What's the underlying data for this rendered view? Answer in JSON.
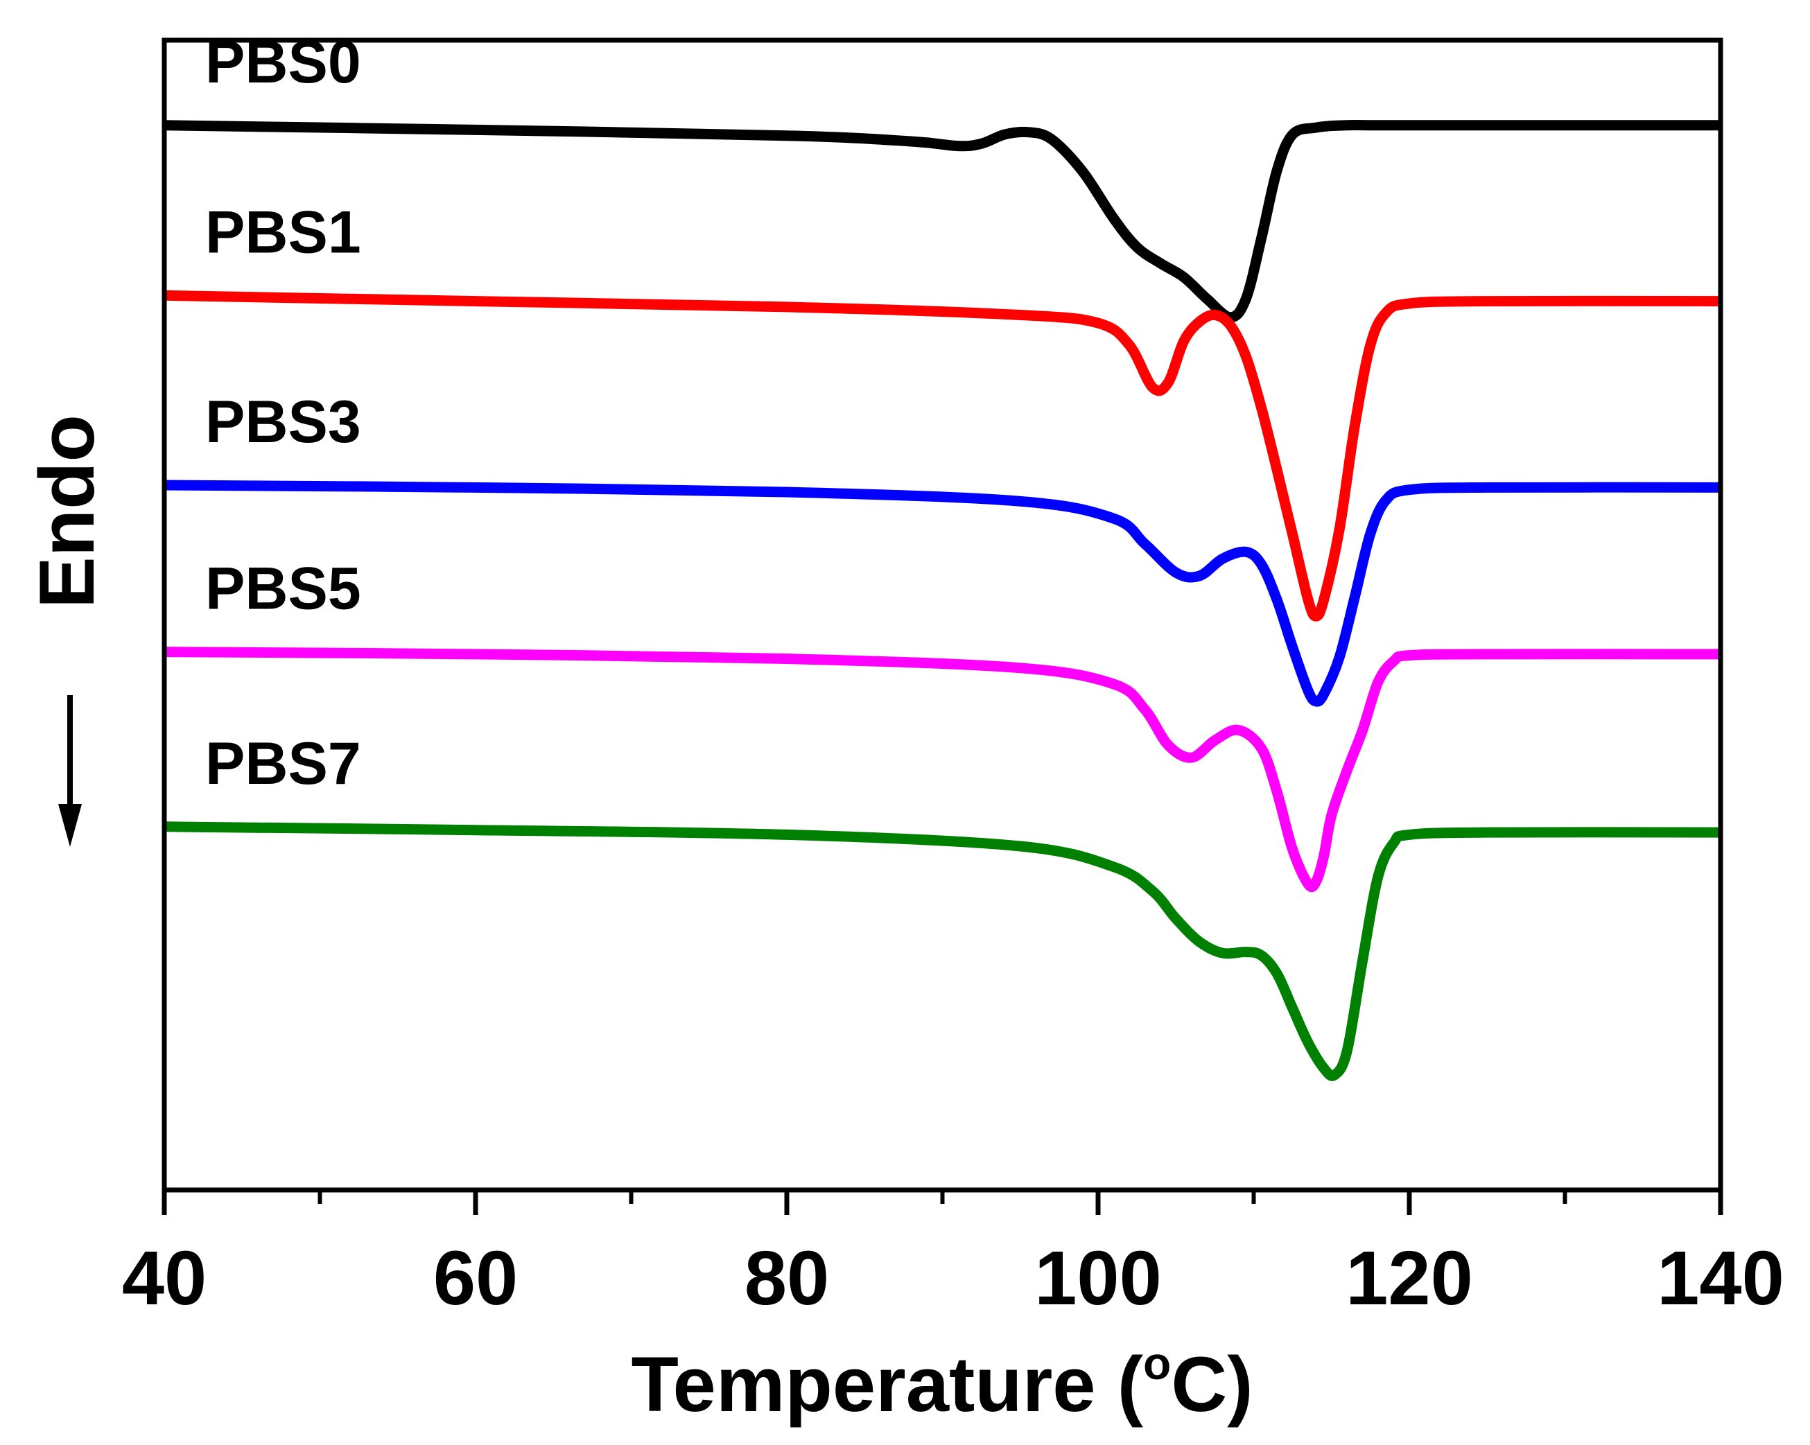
{
  "chart_data": {
    "type": "line",
    "title": "",
    "xlabel": "Temperature (°C)",
    "xlabel_main": "Temperature (",
    "xlabel_degree": "o",
    "xlabel_unit": "C)",
    "ylabel": "Endo",
    "ylabel_arrow": "down",
    "xlim": [
      40,
      140
    ],
    "x_ticks": [
      40,
      60,
      80,
      100,
      120,
      140
    ],
    "x_tick_labels": [
      "40",
      "60",
      "80",
      "100",
      "120",
      "140"
    ],
    "x_minor_ticks": [
      50,
      70,
      90,
      110,
      130
    ],
    "y_ticks": [],
    "ylim": [
      0,
      100
    ],
    "grid": false,
    "series": [
      {
        "name": "PBS0",
        "color": "#000000",
        "x": [
          40,
          60,
          80,
          88,
          91,
          92.5,
          94,
          95.5,
          97,
          99,
          101,
          102.5,
          104,
          105.5,
          107,
          108.5,
          109.5,
          110.5,
          111.5,
          112.5,
          114,
          116,
          120,
          140
        ],
        "y": [
          92.6,
          92.2,
          91.7,
          91.2,
          90.8,
          91.0,
          91.8,
          92.0,
          91.4,
          88.6,
          84.5,
          82.0,
          80.6,
          79.4,
          77.5,
          75.9,
          77.5,
          82.8,
          88.7,
          91.8,
          92.4,
          92.6,
          92.6,
          92.6
        ]
      },
      {
        "name": "PBS1",
        "color": "#ff0000",
        "x": [
          40,
          60,
          80,
          95,
          100,
          102,
          103.5,
          104.5,
          105.5,
          106.5,
          107.5,
          108.5,
          109.5,
          110.5,
          111.5,
          112.5,
          113.5,
          114,
          114.5,
          115.5,
          116.5,
          117.5,
          118.5,
          120,
          125,
          140
        ],
        "y": [
          77.8,
          77.3,
          76.8,
          76.1,
          75.4,
          73.5,
          69.8,
          70.2,
          73.8,
          75.5,
          76.1,
          75.2,
          72.5,
          68.0,
          62.6,
          57.0,
          51.3,
          49.9,
          51.3,
          57.4,
          66.5,
          73.5,
          76.3,
          77.1,
          77.3,
          77.3
        ]
      },
      {
        "name": "PBS3",
        "color": "#0000ff",
        "x": [
          40,
          60,
          80,
          95,
          101,
          103,
          105,
          106.5,
          108,
          109.5,
          110.5,
          111.5,
          112.5,
          113.5,
          114,
          114.5,
          115.5,
          116.5,
          117.5,
          118.5,
          120,
          125,
          140
        ],
        "y": [
          61.3,
          61.1,
          60.7,
          59.9,
          58.4,
          56.2,
          53.7,
          53.4,
          54.9,
          55.5,
          54.4,
          51.3,
          47.2,
          43.4,
          42.5,
          43.1,
          46.3,
          51.6,
          57.1,
          60.0,
          60.9,
          61.1,
          61.1
        ]
      },
      {
        "name": "PBS5",
        "color": "#ff00ff",
        "x": [
          40,
          60,
          80,
          95,
          101,
          103,
          104.5,
          106,
          107.5,
          109,
          110.5,
          111.5,
          112.5,
          113.5,
          114,
          114.5,
          115,
          116,
          117,
          118,
          119,
          120,
          125,
          140
        ],
        "y": [
          46.8,
          46.6,
          46.2,
          45.4,
          44.0,
          41.8,
          38.7,
          37.6,
          39.1,
          40.0,
          38.4,
          34.6,
          29.6,
          26.6,
          26.8,
          29.0,
          32.6,
          36.5,
          40.0,
          44.2,
          46.0,
          46.5,
          46.6,
          46.6
        ]
      },
      {
        "name": "PBS7",
        "color": "#008000",
        "x": [
          40,
          60,
          80,
          95,
          101,
          103.5,
          105,
          106.5,
          108,
          109.5,
          110.5,
          111.5,
          112.5,
          113.5,
          114.5,
          115.2,
          116,
          117,
          118,
          119,
          120,
          125,
          140
        ],
        "y": [
          31.6,
          31.3,
          30.9,
          29.9,
          28.1,
          26.0,
          23.6,
          21.6,
          20.6,
          20.7,
          20.4,
          18.8,
          15.8,
          12.8,
          10.6,
          10.0,
          12.1,
          20.0,
          27.3,
          30.2,
          30.9,
          31.1,
          31.1
        ]
      }
    ]
  }
}
